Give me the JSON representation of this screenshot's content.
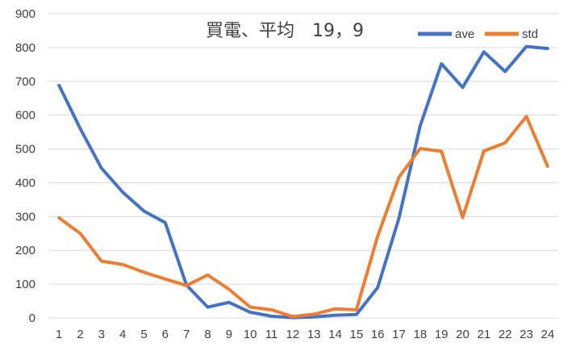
{
  "chart_data": {
    "type": "line",
    "title": "買電、平均　19，9",
    "xlabel": "",
    "ylabel": "",
    "x": [
      1,
      2,
      3,
      4,
      5,
      6,
      7,
      8,
      9,
      10,
      11,
      12,
      13,
      14,
      15,
      16,
      17,
      18,
      19,
      20,
      21,
      22,
      23,
      24
    ],
    "ylim": [
      0,
      900
    ],
    "yticks": [
      0,
      100,
      200,
      300,
      400,
      500,
      600,
      700,
      800,
      900
    ],
    "grid": true,
    "legend": "top-right",
    "series": [
      {
        "name": "ave",
        "color": "#4472C4",
        "values": [
          688,
          560,
          443,
          372,
          316,
          282,
          97,
          32,
          46,
          17,
          5,
          1,
          3,
          8,
          10,
          90,
          295,
          568,
          752,
          682,
          787,
          729,
          803,
          797
        ]
      },
      {
        "name": "std",
        "color": "#ED7D31",
        "values": [
          296,
          250,
          168,
          158,
          135,
          115,
          96,
          127,
          85,
          32,
          24,
          4,
          11,
          27,
          24,
          242,
          416,
          501,
          493,
          297,
          494,
          518,
          596,
          449
        ]
      }
    ]
  }
}
